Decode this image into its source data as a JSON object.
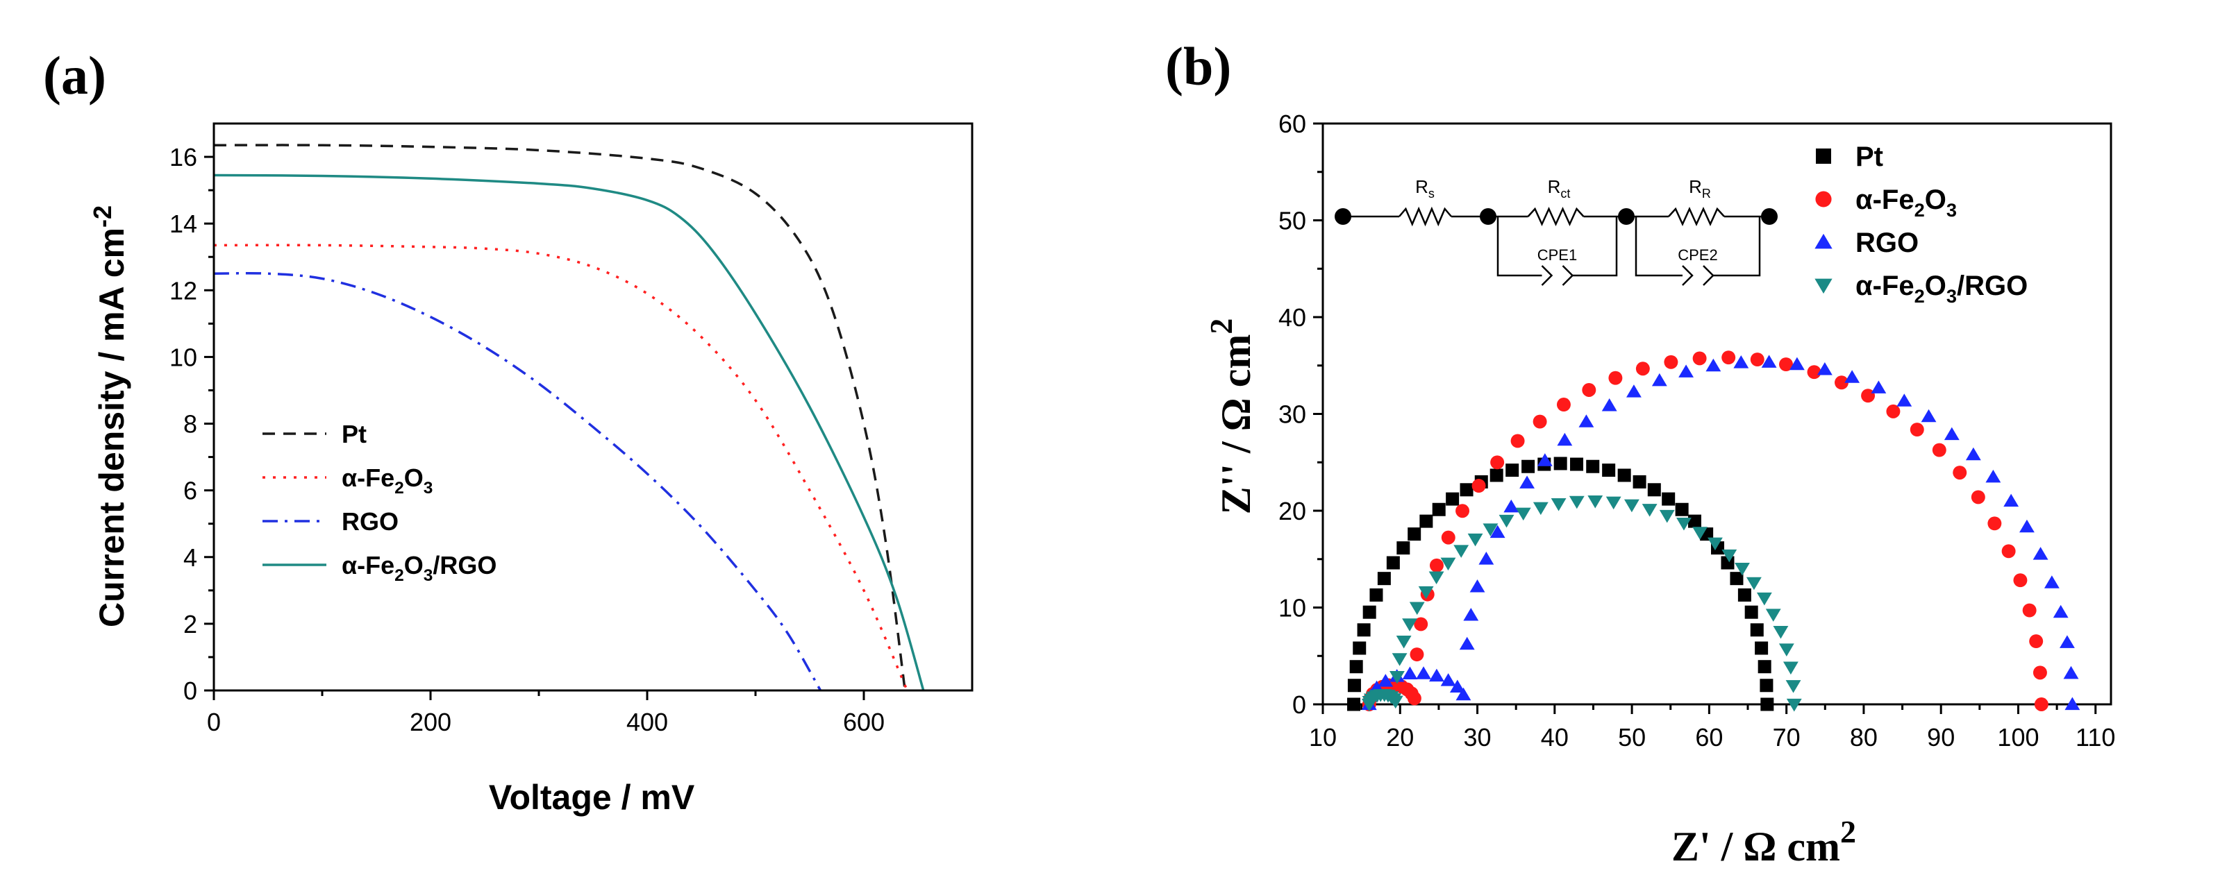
{
  "chart_data": [
    {
      "type": "line",
      "panel_label": "(a)",
      "xlabel": "Voltage / mV",
      "ylabel": "Current density / mA cm",
      "ylabel_sup": "-2",
      "xlim": [
        0,
        700
      ],
      "ylim": [
        0,
        17
      ],
      "xticks": [
        0,
        200,
        400,
        600
      ],
      "yticks": [
        0,
        2,
        4,
        6,
        8,
        10,
        12,
        14,
        16
      ],
      "legend_position": "lower-left",
      "series": [
        {
          "name": "Pt",
          "legend": {
            "pre": "Pt",
            "sub": "",
            "post": ""
          },
          "color": "#1a1a1a",
          "dash": "dashed",
          "x": [
            0,
            100,
            200,
            300,
            400,
            450,
            500,
            540,
            570,
            600,
            620,
            638
          ],
          "y": [
            16.35,
            16.35,
            16.3,
            16.2,
            15.95,
            15.65,
            14.9,
            13.5,
            11.5,
            8.0,
            4.5,
            0
          ]
        },
        {
          "name": "α-Fe2O3",
          "legend": {
            "pre": "α-Fe",
            "sub": "2",
            "post": "O",
            "sub2": "3",
            "post2": ""
          },
          "color": "#ff2020",
          "dash": "dotted",
          "x": [
            0,
            100,
            200,
            250,
            300,
            350,
            400,
            450,
            500,
            550,
            600,
            640
          ],
          "y": [
            13.35,
            13.35,
            13.3,
            13.25,
            13.1,
            12.7,
            11.9,
            10.6,
            8.7,
            6.0,
            3.0,
            0
          ]
        },
        {
          "name": "RGO",
          "legend": {
            "pre": "RGO",
            "sub": "",
            "post": ""
          },
          "color": "#2030e0",
          "dash": "dashdot",
          "x": [
            0,
            50,
            100,
            150,
            200,
            250,
            300,
            350,
            400,
            450,
            500,
            530,
            560
          ],
          "y": [
            12.5,
            12.5,
            12.35,
            11.9,
            11.2,
            10.3,
            9.2,
            7.9,
            6.5,
            4.9,
            3.0,
            1.7,
            0
          ]
        },
        {
          "name": "α-Fe2O3/RGO",
          "legend": {
            "pre": "α-Fe",
            "sub": "2",
            "post": "O",
            "sub2": "3",
            "post2": "/RGO"
          },
          "color": "#1f8a84",
          "dash": "solid",
          "x": [
            0,
            100,
            200,
            300,
            350,
            400,
            430,
            460,
            500,
            550,
            600,
            630,
            655
          ],
          "y": [
            15.45,
            15.43,
            15.35,
            15.2,
            15.05,
            14.7,
            14.2,
            13.2,
            11.3,
            8.5,
            5.2,
            2.8,
            0
          ]
        }
      ]
    },
    {
      "type": "scatter",
      "panel_label": "(b)",
      "xlabel": "Z' / Ω  cm",
      "xlabel_sup": "2",
      "ylabel": "Z'' / Ω  cm",
      "ylabel_sup": "2",
      "xlim": [
        10,
        112
      ],
      "ylim": [
        0,
        60
      ],
      "xticks": [
        10,
        20,
        30,
        40,
        50,
        60,
        70,
        80,
        90,
        100,
        110
      ],
      "yticks": [
        0,
        10,
        20,
        30,
        40,
        50,
        60
      ],
      "legend_position": "top-right",
      "inset": {
        "elements": [
          "Rs",
          "Rct",
          "RR"
        ],
        "labels": [
          {
            "main": "R",
            "sub": "s"
          },
          {
            "main": "R",
            "sub": "ct"
          },
          {
            "main": "R",
            "sub": "R"
          }
        ],
        "cpe": [
          "CPE1",
          "CPE2"
        ]
      },
      "series": [
        {
          "name": "Pt",
          "legend": {
            "pre": "Pt",
            "sub": "",
            "post": ""
          },
          "color": "#000000",
          "marker": "square",
          "arc": {
            "r0": 14.0,
            "r1": 67.5,
            "mode": "single"
          }
        },
        {
          "name": "α-Fe2O3",
          "legend": {
            "pre": "α-Fe",
            "sub": "2",
            "post": "O",
            "sub2": "3",
            "post2": ""
          },
          "color": "#ff1a1a",
          "marker": "circle",
          "arc": {
            "r0": 16.0,
            "r1": 103.0,
            "mode": "double",
            "bump_end": 22.0,
            "bump_h": 2.0
          }
        },
        {
          "name": "RGO",
          "legend": {
            "pre": "RGO",
            "sub": "",
            "post": ""
          },
          "color": "#1a2aff",
          "marker": "triangle-up",
          "arc": {
            "r0": 16.0,
            "r1": 107.0,
            "mode": "double",
            "bump_end": 28.5,
            "bump_h": 3.2
          }
        },
        {
          "name": "α-Fe2O3/RGO",
          "legend": {
            "pre": "α-Fe",
            "sub": "2",
            "post": "O",
            "sub2": "3",
            "post2": "/RGO"
          },
          "color": "#1a8a86",
          "marker": "triangle-down",
          "arc": {
            "r0": 16.0,
            "r1": 71.0,
            "mode": "double",
            "bump_end": 19.5,
            "bump_h": 1.0,
            "peak": 20.5
          }
        }
      ]
    }
  ]
}
